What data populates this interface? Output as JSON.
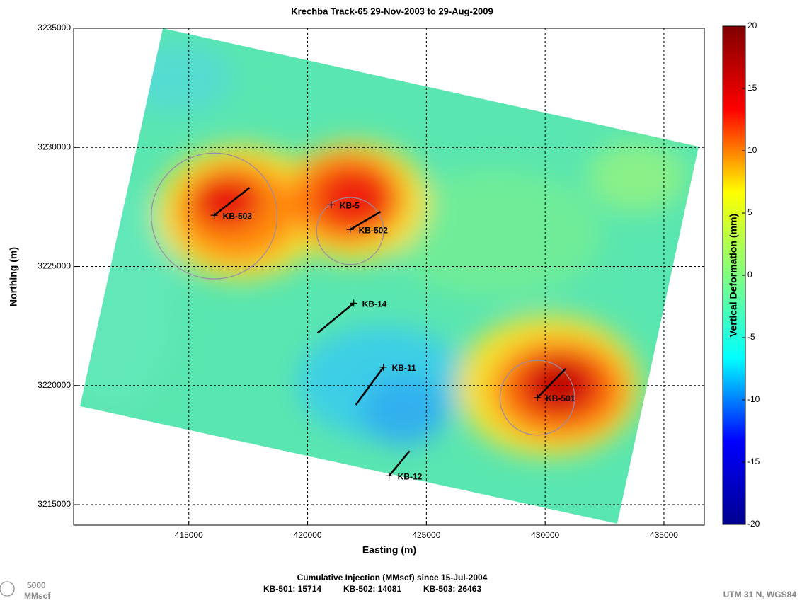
{
  "chart_data": {
    "type": "map",
    "title": "Krechba Track-65 29-Nov-2003 to 29-Aug-2009",
    "x_label": "Easting (m)",
    "y_label": "Northing (m)",
    "xlim": [
      410150,
      436700
    ],
    "ylim": [
      3214140,
      3235000
    ],
    "xticks": [
      415000,
      420000,
      425000,
      430000,
      435000
    ],
    "yticks": [
      3215000,
      3220000,
      3225000,
      3230000,
      3235000
    ],
    "grid": true,
    "colorbar": {
      "label": "Vertical Deformation (mm)",
      "lim": [
        -20,
        20
      ],
      "ticks": [
        -20,
        -15,
        -10,
        -5,
        0,
        5,
        10,
        15,
        20
      ],
      "colors": [
        "#00008f",
        "#0000ff",
        "#00ffff",
        "#80ff80",
        "#ffff00",
        "#ff0000",
        "#800000"
      ]
    },
    "wells": [
      {
        "name": "KB-503",
        "x": 416070,
        "y": 3227150,
        "end_x": 417560,
        "end_y": 3228310
      },
      {
        "name": "KB-5",
        "x": 420990,
        "y": 3227590
      },
      {
        "name": "KB-502",
        "x": 421790,
        "y": 3226550,
        "end_x": 423070,
        "end_y": 3227300
      },
      {
        "name": "KB-14",
        "x": 421940,
        "y": 3223460,
        "end_x": 420420,
        "end_y": 3222210
      },
      {
        "name": "KB-11",
        "x": 423190,
        "y": 3220770,
        "end_x": 422030,
        "end_y": 3219190
      },
      {
        "name": "KB-501",
        "x": 429670,
        "y": 3219490,
        "end_x": 430860,
        "end_y": 3220710
      },
      {
        "name": "KB-12",
        "x": 423430,
        "y": 3216210,
        "end_x": 424290,
        "end_y": 3217250
      }
    ],
    "injection_title": "Cumulative Injection (MMscf) since 15-Jul-2004",
    "injections": [
      {
        "label": "KB-501: 15714",
        "value": 15714,
        "x": 429670,
        "y": 3219490
      },
      {
        "label": "KB-502: 14081",
        "value": 14081,
        "x": 421790,
        "y": 3226490
      },
      {
        "label": "KB-503: 26463",
        "value": 26463,
        "x": 416070,
        "y": 3227120
      }
    ],
    "legend_value": 5000,
    "legend_unit": "MMscf",
    "projection": "UTM 31 N, WGS84"
  }
}
